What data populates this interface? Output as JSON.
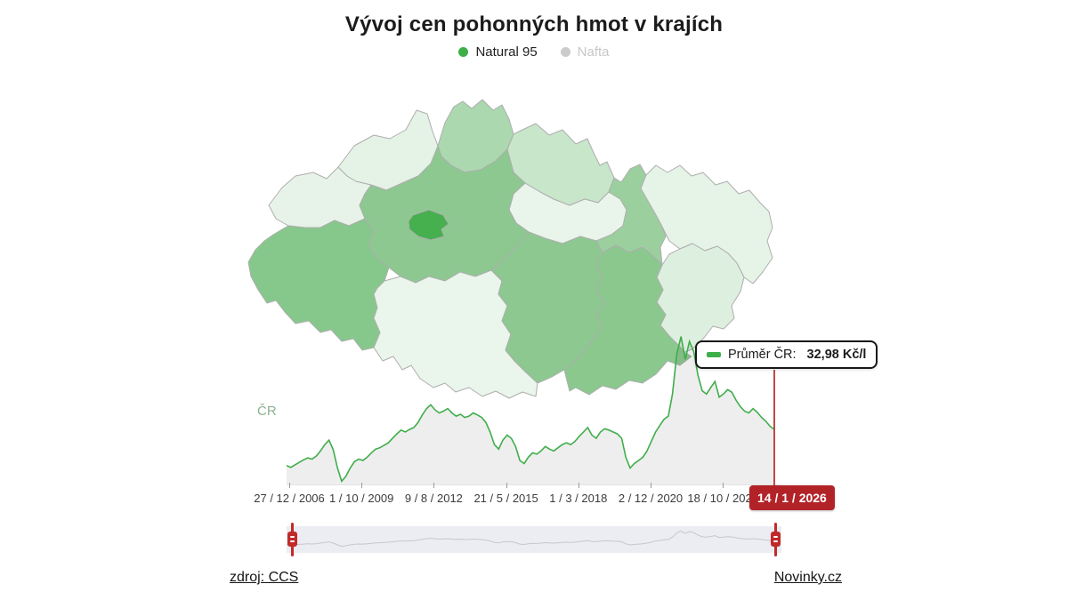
{
  "header": {
    "title": "Vývoj cen pohonných hmot v krajích",
    "legend": [
      {
        "label": "Natural 95",
        "color": "#3daf49",
        "active": true
      },
      {
        "label": "Nafta",
        "color": "#cccccc",
        "active": false
      }
    ]
  },
  "map": {
    "border_color": "#aeaeae",
    "regions": [
      {
        "id": "karlovarsky",
        "color": "#e7f3e8"
      },
      {
        "id": "ustecky",
        "color": "#e5f2e6"
      },
      {
        "id": "liberecky",
        "color": "#abd8ae"
      },
      {
        "id": "kralovehradecky",
        "color": "#c8e6ca"
      },
      {
        "id": "pardubicky",
        "color": "#e9f5ea"
      },
      {
        "id": "stredocesky",
        "color": "#8cc890"
      },
      {
        "id": "plzensky",
        "color": "#86c88b"
      },
      {
        "id": "jihocesky",
        "color": "#eaf5eb"
      },
      {
        "id": "vysocina",
        "color": "#8cc890"
      },
      {
        "id": "olomoucky",
        "color": "#9bd09e"
      },
      {
        "id": "moravskoslezsky",
        "color": "#e6f3e7"
      },
      {
        "id": "zlinsky",
        "color": "#ddefde"
      },
      {
        "id": "jihomoravsky",
        "color": "#8ac88e"
      },
      {
        "id": "praha",
        "color": "#46af4e"
      }
    ]
  },
  "tooltip": {
    "label": "Průměr ČR:",
    "value": "32,98 Kč/l",
    "marker_color": "#3daf49"
  },
  "series_label": "ČR",
  "date_badge": "14 / 1 / 2026",
  "axis": {
    "tick_labels": [
      "27 / 12 / 2006",
      "1 / 10 / 2009",
      "9 / 8 / 2012",
      "21 / 5 / 2015",
      "1 / 3 / 2018",
      "2 / 12 / 2020",
      "18 / 10 / 2023"
    ]
  },
  "footer": {
    "source_label": "zdroj: CCS",
    "brand_label": "Novinky.cz"
  },
  "colors": {
    "line_green": "#3fae4a",
    "area_fill": "rgba(90,90,90,0.10)",
    "accent_red_badge": "#b22328",
    "accent_red_line": "#bf4a42",
    "accent_red_handle": "#c12a2a",
    "slider_track": "#ecedf3",
    "slider_line": "#c6c6cc"
  },
  "chart_data": {
    "type": "line",
    "title": "Vývoj cen pohonných hmot v krajích",
    "selected_fuel": "Natural 95",
    "legend": [
      "Natural 95",
      "Nafta"
    ],
    "x_range": [
      "27 / 12 / 2006",
      "14 / 1 / 2026"
    ],
    "x_tick_labels": [
      "27 / 12 / 2006",
      "1 / 10 / 2009",
      "9 / 8 / 2012",
      "21 / 5 / 2015",
      "1 / 3 / 2018",
      "2 / 12 / 2020",
      "18 / 10 / 2023",
      "14 / 1 / 2026"
    ],
    "ylim": [
      24.3,
      48.2
    ],
    "grid": false,
    "unit": "Kč/l",
    "series": [
      {
        "name": "Průměr ČR – Natural 95",
        "current_value": "32,98 Kč/l",
        "values": [
          27.3,
          27.0,
          27.4,
          27.8,
          28.2,
          28.5,
          28.3,
          28.8,
          29.6,
          30.6,
          31.3,
          29.8,
          26.9,
          24.8,
          25.6,
          26.9,
          27.9,
          28.3,
          28.1,
          28.6,
          29.3,
          29.9,
          30.1,
          30.5,
          30.9,
          31.6,
          32.3,
          32.9,
          32.6,
          33.0,
          33.3,
          34.1,
          35.3,
          36.3,
          36.9,
          36.1,
          35.6,
          35.9,
          36.3,
          35.6,
          35.1,
          35.4,
          34.9,
          35.1,
          35.6,
          35.3,
          34.9,
          34.1,
          32.6,
          30.6,
          29.9,
          31.3,
          32.1,
          31.6,
          30.3,
          28.1,
          27.6,
          28.6,
          29.3,
          29.1,
          29.6,
          30.3,
          29.9,
          29.6,
          30.1,
          30.6,
          30.9,
          30.6,
          31.1,
          31.9,
          32.6,
          33.3,
          32.1,
          31.6,
          32.6,
          33.1,
          32.9,
          32.6,
          32.3,
          31.6,
          28.6,
          26.9,
          27.6,
          28.1,
          28.6,
          29.6,
          31.1,
          32.6,
          33.6,
          34.6,
          35.1,
          38.6,
          44.9,
          47.7,
          44.1,
          46.9,
          45.3,
          41.6,
          39.1,
          38.6,
          39.6,
          40.6,
          38.1,
          38.6,
          39.3,
          38.9,
          37.6,
          36.6,
          35.9,
          35.6,
          36.3,
          35.7,
          34.9,
          34.3,
          33.5,
          32.98
        ]
      }
    ]
  }
}
